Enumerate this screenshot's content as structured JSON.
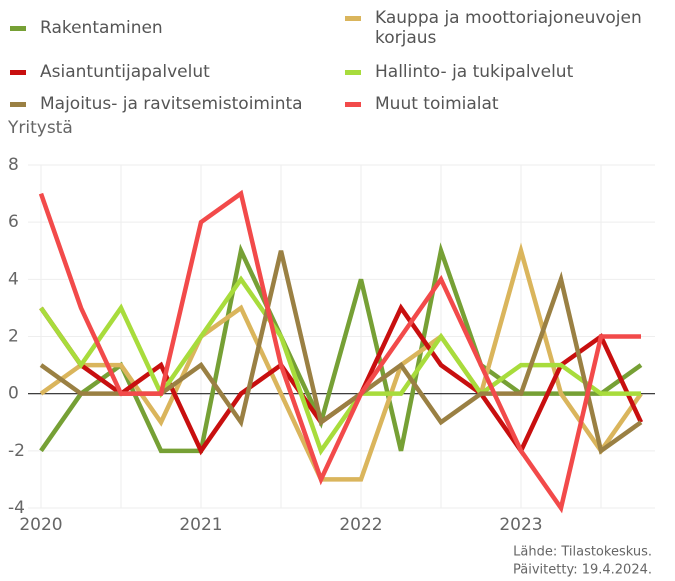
{
  "chart_data": {
    "type": "line",
    "y_label": "Yritystä",
    "categories": [
      "2020",
      null,
      null,
      null,
      "2021",
      null,
      null,
      null,
      "2022",
      null,
      null,
      null,
      "2023",
      null,
      null,
      null
    ],
    "series": [
      {
        "name": "Rakentaminen",
        "color": "#76a035",
        "values": [
          -2,
          0,
          1,
          -2,
          -2,
          5,
          2,
          -1,
          4,
          -2,
          5,
          1,
          0,
          0,
          0,
          1
        ]
      },
      {
        "name": "Kauppa ja moottoriajoneuvojen korjaus",
        "color": "#dab55c",
        "values": [
          0,
          1,
          1,
          -1,
          2,
          3,
          0,
          -3,
          -3,
          1,
          2,
          0,
          5,
          0,
          -2,
          0
        ]
      },
      {
        "name": "Asiantuntijapalvelut",
        "color": "#c80f0f",
        "values": [
          3,
          1,
          0,
          1,
          -2,
          0,
          1,
          -1,
          0,
          3,
          1,
          0,
          -2,
          1,
          2,
          -1
        ]
      },
      {
        "name": "Hallinto- ja tukipalvelut",
        "color": "#a8dc3c",
        "values": [
          3,
          1,
          3,
          0,
          2,
          4,
          2,
          -2,
          0,
          0,
          2,
          0,
          1,
          1,
          0,
          0
        ]
      },
      {
        "name": "Majoitus- ja ravitsemistoiminta",
        "color": "#9a8043",
        "values": [
          1,
          0,
          0,
          0,
          1,
          -1,
          5,
          -1,
          0,
          1,
          -1,
          0,
          0,
          4,
          -2,
          -1
        ]
      },
      {
        "name": "Muut toimialat",
        "color": "#f24a4a",
        "values": [
          7,
          3,
          0,
          0,
          6,
          7,
          1,
          -3,
          0,
          2,
          4,
          1,
          -2,
          -4,
          2,
          2
        ]
      }
    ],
    "ylim": [
      -4,
      8
    ],
    "yticks": [
      -4,
      -2,
      0,
      2,
      4,
      6,
      8
    ],
    "grid": true,
    "source": "Lähde: Tilastokeskus.",
    "updated": "Päivitetty: 19.4.2024."
  }
}
